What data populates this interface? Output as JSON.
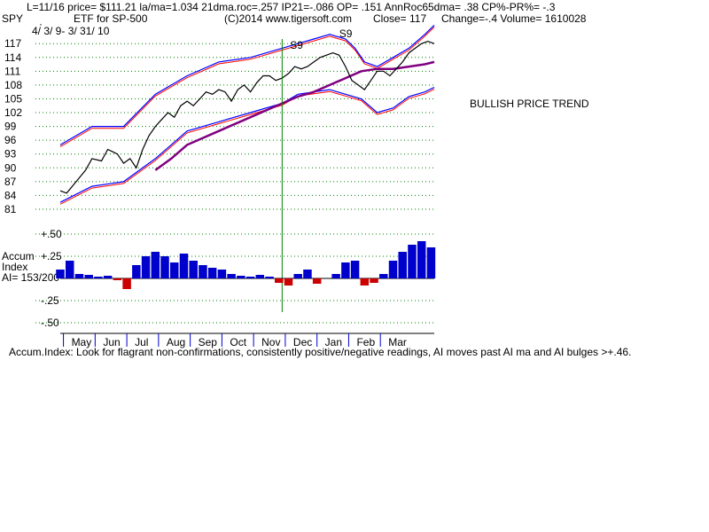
{
  "header": {
    "line1": "L=11/16  price= $111.21  la/ma=1.034 21dma.roc=.257 IP21=-.086 OP= .151 AnnRoc65dma= .38 CP%-PR%= -.3",
    "symbol": "SPY",
    "description": "ETF for SP-500",
    "copyright": "(C)2014 www.tigersoft.com",
    "close": "Close=  117",
    "change_volume": "Change=-.4 Volume= 1610028",
    "date_range": "4/ 3/ 9-  3/ 31/ 10",
    "bullet": "·"
  },
  "annotation": "BULLISH PRICE TREND",
  "accum_label": {
    "line1": "Accum",
    "line2": "Index",
    "line3": "AI= 153/200"
  },
  "footer": "Accum.Index: Look for flagrant non-confirmations, consistently positive/negative readings, AI moves past AI ma and AI bulges >+.46.",
  "colors": {
    "grid": "#008000",
    "price": "#000000",
    "band_blue": "#0000ff",
    "band_red": "#ff0000",
    "ma_purple": "#800080",
    "ai_pos": "#0000cc",
    "ai_neg": "#cc0000",
    "signal_line": "#008000"
  },
  "chart_data": [
    {
      "type": "line",
      "title": "SPY price (daily bars) with bands and moving average",
      "y_ticks": [
        "117",
        "114",
        "111",
        "108",
        "105",
        "102",
        "99",
        "96",
        "93",
        "90",
        "87",
        "84",
        "81"
      ],
      "ylim": [
        81,
        118
      ],
      "x_months": [
        "May",
        "Jun",
        "Jul",
        "Aug",
        "Sep",
        "Oct",
        "Nov",
        "Dec",
        "Jan",
        "Feb",
        "Mar"
      ],
      "x_range": [
        0,
        11.8
      ],
      "signals": [
        {
          "label": "S9",
          "x": 7.25,
          "y": 115.5
        },
        {
          "label": "S9",
          "x": 8.8,
          "y": 118
        }
      ],
      "signal_vline_x": 7.0,
      "series": [
        {
          "name": "close",
          "x": [
            0,
            0.2,
            0.5,
            0.8,
            1.0,
            1.3,
            1.5,
            1.8,
            2.0,
            2.2,
            2.4,
            2.6,
            2.8,
            3.0,
            3.2,
            3.4,
            3.6,
            3.8,
            4.0,
            4.2,
            4.4,
            4.6,
            4.8,
            5.0,
            5.2,
            5.4,
            5.6,
            5.8,
            6.0,
            6.2,
            6.4,
            6.6,
            6.8,
            7.0,
            7.2,
            7.4,
            7.6,
            7.8,
            8.0,
            8.2,
            8.4,
            8.6,
            8.8,
            9.0,
            9.2,
            9.4,
            9.6,
            9.8,
            10.0,
            10.2,
            10.4,
            10.6,
            10.8,
            11.0,
            11.2,
            11.4,
            11.6,
            11.8
          ],
          "values": [
            85,
            84.5,
            87,
            89.5,
            92,
            91.5,
            94,
            93,
            91,
            92,
            90,
            94,
            97,
            99,
            100.5,
            102,
            101,
            103.5,
            104.5,
            103.5,
            105,
            106.5,
            106,
            107,
            106.5,
            104.5,
            107,
            108,
            106.5,
            108.5,
            110,
            110,
            109,
            109.5,
            110.5,
            112,
            111.5,
            112,
            113,
            114,
            114.5,
            115,
            114.5,
            112,
            109,
            108,
            107,
            109,
            111,
            111,
            110,
            111.5,
            113,
            115,
            116,
            117,
            117.5,
            117
          ]
        },
        {
          "name": "upper_band_blue",
          "x": [
            0,
            1,
            2,
            3,
            4,
            5,
            6,
            7,
            7.5,
            8,
            8.5,
            9,
            9.3,
            9.6,
            10,
            10.5,
            11,
            11.5,
            11.8
          ],
          "values": [
            95,
            99,
            99,
            106,
            110,
            113,
            114,
            116,
            117,
            118,
            119,
            118,
            116,
            113,
            112,
            114,
            116,
            119,
            121
          ]
        },
        {
          "name": "lower_band_blue",
          "x": [
            0,
            1,
            2,
            3,
            4,
            5,
            6,
            7,
            7.5,
            8,
            8.5,
            9,
            9.5,
            10,
            10.5,
            11,
            11.5,
            11.8
          ],
          "values": [
            82.5,
            86,
            87,
            92,
            98,
            100,
            102,
            104,
            106,
            106.5,
            107,
            106,
            105,
            102,
            103,
            105.5,
            106.5,
            107.5
          ]
        },
        {
          "name": "ma",
          "x": [
            3,
            3.5,
            4,
            5,
            6,
            7,
            7.5,
            8,
            8.5,
            9,
            9.5,
            10,
            10.5,
            11,
            11.5,
            11.8
          ],
          "values": [
            89.5,
            92,
            95,
            98,
            101,
            104,
            105.5,
            106.5,
            108,
            109.5,
            111,
            111.5,
            111.5,
            112,
            112.5,
            113
          ]
        }
      ]
    },
    {
      "type": "area",
      "title": "Accumulation Index",
      "y_ticks": [
        "+.50",
        "+.25",
        "-.25",
        "-.50"
      ],
      "ylim": [
        -0.55,
        0.55
      ],
      "x": [
        0,
        0.3,
        0.6,
        0.9,
        1.2,
        1.5,
        1.8,
        2.1,
        2.4,
        2.7,
        3.0,
        3.3,
        3.6,
        3.9,
        4.2,
        4.5,
        4.8,
        5.1,
        5.4,
        5.7,
        6.0,
        6.3,
        6.6,
        6.9,
        7.2,
        7.5,
        7.8,
        8.1,
        8.4,
        8.7,
        9.0,
        9.3,
        9.6,
        9.9,
        10.2,
        10.5,
        10.8,
        11.1,
        11.4,
        11.7
      ],
      "values": [
        0.1,
        0.2,
        0.05,
        0.04,
        0.02,
        0.03,
        -0.02,
        -0.12,
        0.15,
        0.25,
        0.3,
        0.25,
        0.18,
        0.28,
        0.2,
        0.15,
        0.12,
        0.1,
        0.05,
        0.03,
        0.02,
        0.04,
        0.02,
        -0.05,
        -0.08,
        0.05,
        0.1,
        -0.06,
        0.0,
        0.05,
        0.18,
        0.2,
        -0.08,
        -0.05,
        0.05,
        0.2,
        0.3,
        0.38,
        0.42,
        0.35
      ]
    }
  ]
}
